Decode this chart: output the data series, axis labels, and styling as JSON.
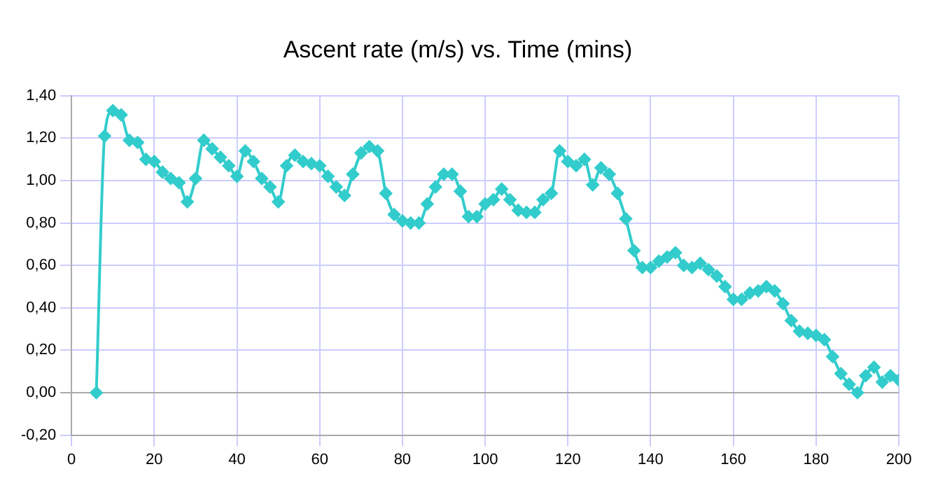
{
  "chart_data": {
    "type": "line",
    "title": "Ascent rate (m/s) vs. Time (mins)",
    "x": [
      6,
      8,
      10,
      12,
      14,
      16,
      18,
      20,
      22,
      24,
      26,
      28,
      30,
      32,
      34,
      36,
      38,
      40,
      42,
      44,
      46,
      48,
      50,
      52,
      54,
      56,
      58,
      60,
      62,
      64,
      66,
      68,
      70,
      72,
      74,
      76,
      78,
      80,
      82,
      84,
      86,
      88,
      90,
      92,
      94,
      96,
      98,
      100,
      102,
      104,
      106,
      108,
      110,
      112,
      114,
      116,
      118,
      120,
      122,
      124,
      126,
      128,
      130,
      132,
      134,
      136,
      138,
      140,
      142,
      144,
      146,
      148,
      150,
      152,
      154,
      156,
      158,
      160,
      162,
      164,
      166,
      168,
      170,
      172,
      174,
      176,
      178,
      180,
      182,
      184,
      186,
      188,
      190,
      192,
      194,
      196,
      198,
      200
    ],
    "series": [
      {
        "color": "#33cccc",
        "values": [
          0,
          1.21,
          1.33,
          1.31,
          1.19,
          1.18,
          1.1,
          1.09,
          1.04,
          1.01,
          0.99,
          0.9,
          1.01,
          1.19,
          1.15,
          1.11,
          1.07,
          1.02,
          1.14,
          1.09,
          1.01,
          0.97,
          0.9,
          1.07,
          1.12,
          1.09,
          1.08,
          1.07,
          1.02,
          0.97,
          0.93,
          1.03,
          1.13,
          1.16,
          1.14,
          0.94,
          0.84,
          0.81,
          0.8,
          0.8,
          0.89,
          0.97,
          1.03,
          1.03,
          0.95,
          0.83,
          0.83,
          0.89,
          0.91,
          0.96,
          0.91,
          0.86,
          0.85,
          0.85,
          0.91,
          0.94,
          1.14,
          1.09,
          1.07,
          1.1,
          0.98,
          1.06,
          1.03,
          0.94,
          0.82,
          0.67,
          0.59,
          0.59,
          0.62,
          0.64,
          0.66,
          0.6,
          0.59,
          0.61,
          0.58,
          0.55,
          0.5,
          0.44,
          0.44,
          0.47,
          0.48,
          0.5,
          0.48,
          0.42,
          0.34,
          0.29,
          0.28,
          0.27,
          0.25,
          0.17,
          0.09,
          0.04,
          0,
          0.08,
          0.12,
          0.05,
          0.08,
          0.06
        ]
      }
    ],
    "xlim": [
      0,
      200
    ],
    "xticks": [
      0,
      20,
      40,
      60,
      80,
      100,
      120,
      140,
      160,
      180,
      200
    ],
    "ylim": [
      -0.2,
      1.4
    ],
    "yticks": [
      {
        "value": -0.2,
        "label": "-0,20"
      },
      {
        "value": 0,
        "label": "0,00"
      },
      {
        "value": 0.2,
        "label": "0,20"
      },
      {
        "value": 0.4,
        "label": "0,40"
      },
      {
        "value": 0.6,
        "label": "0,60"
      },
      {
        "value": 0.8,
        "label": "0,80"
      },
      {
        "value": 1,
        "label": "1,00"
      },
      {
        "value": 1.2,
        "label": "1,20"
      },
      {
        "value": 1.4,
        "label": "1,40"
      }
    ],
    "grid": true,
    "marker": "diamond",
    "line_style": "solid",
    "legend": false
  }
}
